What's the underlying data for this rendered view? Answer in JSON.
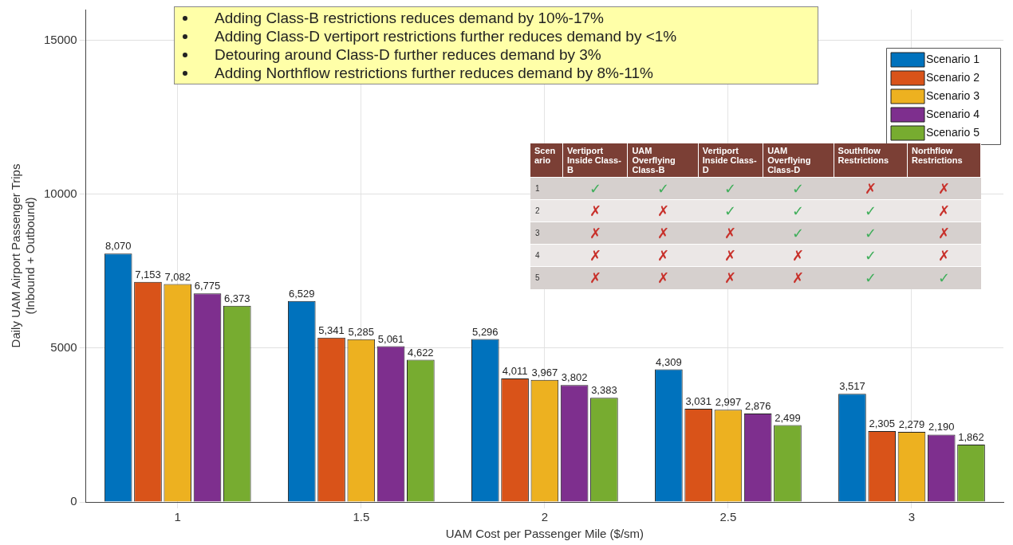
{
  "chart_data": {
    "type": "bar",
    "categories": [
      "1",
      "1.5",
      "2",
      "2.5",
      "3"
    ],
    "series": [
      {
        "name": "Scenario 1",
        "color": "#0072bd",
        "values": [
          8070,
          6529,
          5296,
          4309,
          3517
        ],
        "value_labels": [
          "8,070",
          "6,529",
          "5,296",
          "4,309",
          "3,517"
        ]
      },
      {
        "name": "Scenario 2",
        "color": "#d95319",
        "values": [
          7153,
          5341,
          4011,
          3031,
          2305
        ],
        "value_labels": [
          "7,153",
          "5,341",
          "4,011",
          "3,031",
          "2,305"
        ]
      },
      {
        "name": "Scenario 3",
        "color": "#edb120",
        "values": [
          7082,
          5285,
          3967,
          2997,
          2279
        ],
        "value_labels": [
          "7,082",
          "5,285",
          "3,967",
          "2,997",
          "2,279"
        ]
      },
      {
        "name": "Scenario 4",
        "color": "#7e2f8e",
        "values": [
          6775,
          5061,
          3802,
          2876,
          2190
        ],
        "value_labels": [
          "6,775",
          "5,061",
          "3,802",
          "2,876",
          "2,190"
        ]
      },
      {
        "name": "Scenario 5",
        "color": "#77ac30",
        "values": [
          6373,
          4622,
          3383,
          2499,
          1862
        ],
        "value_labels": [
          "6,373",
          "4,622",
          "3,383",
          "2,499",
          "1,862"
        ]
      }
    ],
    "xlabel": "UAM Cost per Passenger Mile ($/sm)",
    "ylabel": "Daily UAM Airport Passenger Trips\n(Inbound + Outbound)",
    "ylim": [
      0,
      16000
    ],
    "yticks": [
      0,
      5000,
      10000,
      15000
    ],
    "grid": true,
    "legend": "top right",
    "annotations": [
      "Adding Class-B restrictions reduces demand by 10%-17%",
      "Adding Class-D vertiport restrictions further reduces demand by <1%",
      "Detouring around Class-D further reduces demand by 3%",
      "Adding Northflow restrictions further reduces demand by 8%-11%",
      "Scenario",
      "Vertiport Inside Class-B",
      "UAM Overflying Class-B",
      "Vertiport Inside Class-D",
      "UAM Overflying Class-D",
      "Southflow Restrictions",
      "Northflow Restrictions",
      "1",
      "✓",
      "✓",
      "✓",
      "✓",
      "✗",
      "✗",
      "2",
      "✗",
      "✗",
      "✓",
      "✓",
      "✓",
      "✗",
      "3",
      "✗",
      "✗",
      "✗",
      "✓",
      "✓",
      "✗",
      "4",
      "✗",
      "✗",
      "✗",
      "✗",
      "✓",
      "✗",
      "5",
      "✗",
      "✗",
      "✗",
      "✗",
      "✓",
      "✓"
    ]
  }
}
